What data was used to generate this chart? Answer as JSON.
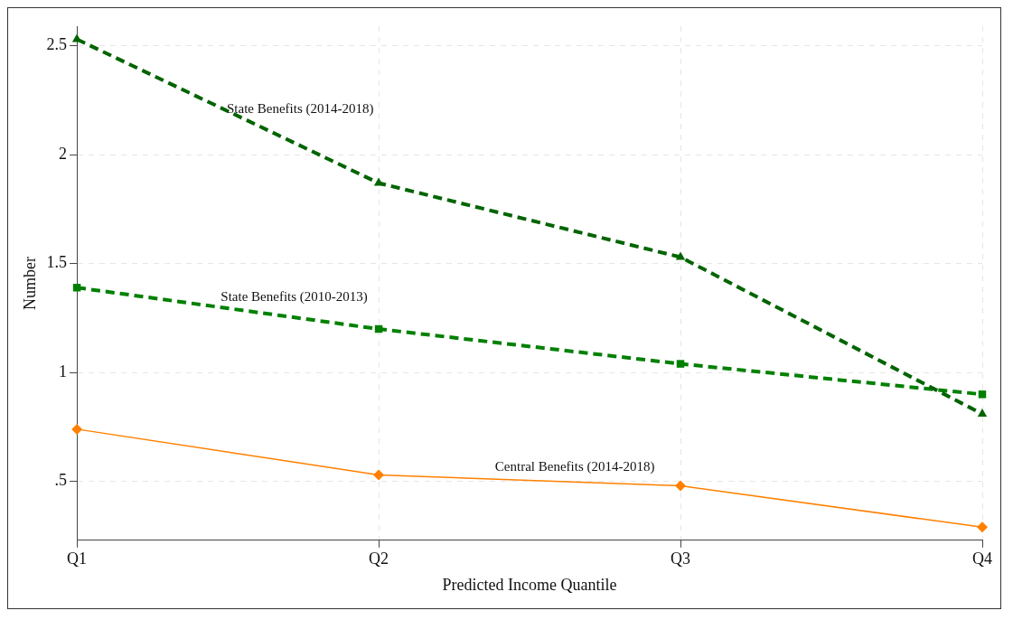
{
  "chart_data": {
    "type": "line",
    "xlabel": "Predicted Income Quantile",
    "ylabel": "Number",
    "categories": [
      "Q1",
      "Q2",
      "Q3",
      "Q4"
    ],
    "series": [
      {
        "name": "State Benefits (2014-2018)",
        "color": "#006400",
        "values": [
          2.53,
          1.87,
          1.53,
          0.81
        ],
        "marker": "triangle",
        "line_style": "dashed"
      },
      {
        "name": "State Benefits (2010-2013)",
        "color": "#008000",
        "values": [
          1.39,
          1.2,
          1.04,
          0.9
        ],
        "marker": "square",
        "line_style": "dashed"
      },
      {
        "name": "Central Benefits (2014-2018)",
        "color": "#ff8000",
        "values": [
          0.74,
          0.53,
          0.48,
          0.29
        ],
        "marker": "diamond",
        "line_style": "solid"
      }
    ],
    "ylim": [
      0.23,
      2.59
    ],
    "yticks": [
      {
        "value": 0.5,
        "label": ".5"
      },
      1,
      1.5,
      2,
      2.5
    ],
    "grid": true,
    "legend": false
  }
}
